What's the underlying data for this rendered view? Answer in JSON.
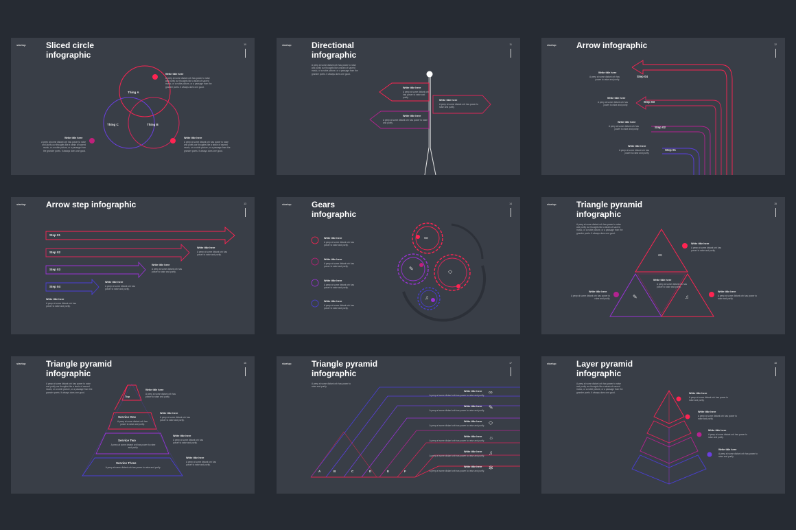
{
  "brand": "startup",
  "colors": {
    "background": "#262b33",
    "slide": "#393e47",
    "red": "#ff2452",
    "purple": "#9a33d6",
    "blue": "#4a3fd8"
  },
  "common": {
    "write_title": "Write title here",
    "body_long": "A peep at some distant orb has power to raise and purify our thoughts like a strain of sacred music, or a noble picture, or a passage from the grander poets. It always does one good.",
    "body_short": "A peep at some distant orb has power to raise and purify."
  },
  "slides": [
    {
      "title": "Sliced circle infographic",
      "number": "10",
      "things": [
        "Thing A",
        "Thing C",
        "Thing B"
      ]
    },
    {
      "title": "Directional infographic",
      "number": "11"
    },
    {
      "title": "Arrow infographic",
      "number": "12",
      "steps": [
        "Step 04",
        "Step 03",
        "Step 02",
        "Step 01"
      ]
    },
    {
      "title": "Arrow step infographic",
      "number": "13",
      "steps": [
        "Step 01",
        "Step 02",
        "Step 03",
        "Step 04"
      ]
    },
    {
      "title": "Gears infographic",
      "number": "14",
      "icons": [
        "binoculars-icon",
        "pencil-icon",
        "diamond-icon",
        "bell-icon"
      ]
    },
    {
      "title": "Triangle pyramid infographic",
      "number": "15"
    },
    {
      "title": "Triangle pyramid infographic",
      "number": "16",
      "levels": [
        "Top",
        "Service One",
        "Service Two",
        "Service Three"
      ]
    },
    {
      "title": "Triangle pyramid infographic",
      "number": "17",
      "letters": [
        "A",
        "B",
        "C",
        "D",
        "E",
        "F"
      ]
    },
    {
      "title": "Layer pyramid infographic",
      "number": "18"
    }
  ]
}
